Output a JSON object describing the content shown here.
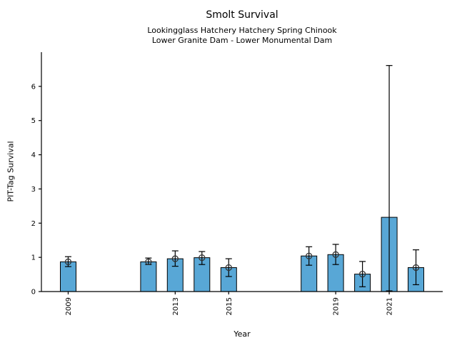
{
  "header": {
    "title": "Smolt Survival",
    "subtitle1": "Lookingglass Hatchery Hatchery Spring Chinook",
    "subtitle2": "Lower Granite Dam - Lower Monumental Dam"
  },
  "chart_data": {
    "type": "bar",
    "title": "Smolt Survival",
    "subtitles": [
      "Lookingglass Hatchery Hatchery Spring Chinook",
      "Lower Granite Dam - Lower Monumental Dam"
    ],
    "xlabel": "Year",
    "ylabel": "PIT-Tag Survival",
    "xlim": [
      2008,
      2023
    ],
    "ylim": [
      0,
      7.0
    ],
    "yticks": [
      0,
      1,
      2,
      3,
      4,
      5,
      6
    ],
    "xticks": [
      2009,
      2013,
      2015,
      2019,
      2021
    ],
    "grid": false,
    "legend": "none",
    "colors": {
      "bar_fill": "#58A7D6",
      "bar_edge": "#000000",
      "error_bar": "#000000",
      "marker_edge": "#333333",
      "axis": "#000000"
    },
    "series": [
      {
        "name": "PIT-Tag Survival",
        "points": [
          {
            "year": 2009,
            "value": 0.87,
            "ci_low": 0.73,
            "ci_high": 1.02,
            "marker": true
          },
          {
            "year": 2012,
            "value": 0.87,
            "ci_low": 0.79,
            "ci_high": 0.98,
            "marker": true
          },
          {
            "year": 2013,
            "value": 0.96,
            "ci_low": 0.74,
            "ci_high": 1.19,
            "marker": true
          },
          {
            "year": 2014,
            "value": 0.99,
            "ci_low": 0.79,
            "ci_high": 1.17,
            "marker": true
          },
          {
            "year": 2015,
            "value": 0.7,
            "ci_low": 0.44,
            "ci_high": 0.96,
            "marker": true
          },
          {
            "year": 2018,
            "value": 1.04,
            "ci_low": 0.77,
            "ci_high": 1.31,
            "marker": true
          },
          {
            "year": 2019,
            "value": 1.08,
            "ci_low": 0.79,
            "ci_high": 1.38,
            "marker": true
          },
          {
            "year": 2020,
            "value": 0.51,
            "ci_low": 0.14,
            "ci_high": 0.88,
            "marker": true
          },
          {
            "year": 2021,
            "value": 2.17,
            "ci_low": 0.02,
            "ci_high": 6.61,
            "marker": false
          },
          {
            "year": 2022,
            "value": 0.7,
            "ci_low": 0.2,
            "ci_high": 1.22,
            "marker": true
          }
        ]
      }
    ]
  }
}
